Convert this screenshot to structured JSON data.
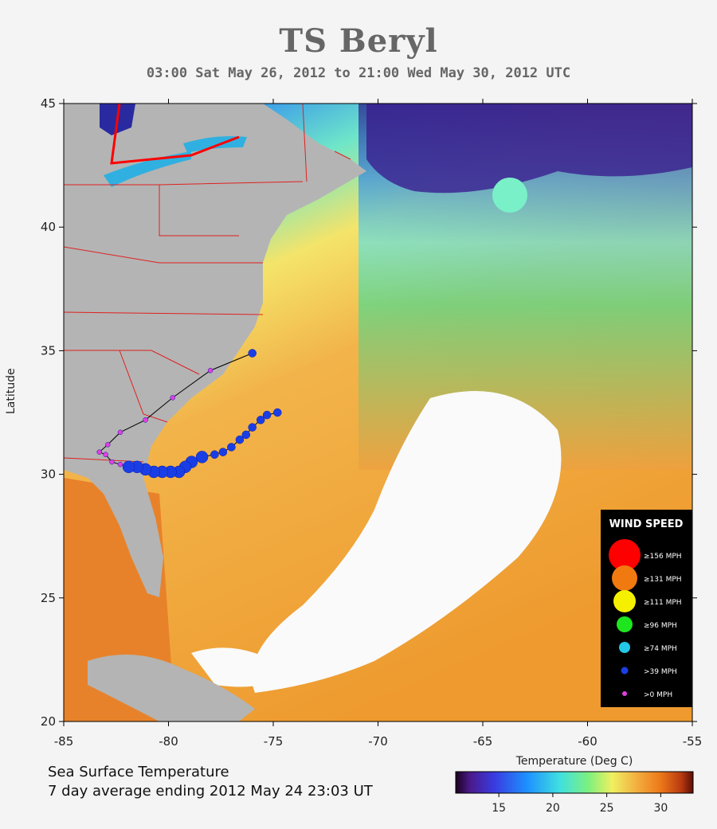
{
  "title": "TS Beryl",
  "subtitle": "03:00 Sat May 26, 2012 to 21:00 Wed May 30, 2012  UTC",
  "axes": {
    "ylabel": "Latitude",
    "lon_ticks": [
      "-85",
      "-80",
      "-75",
      "-70",
      "-65",
      "-60",
      "-55"
    ],
    "lat_ticks": [
      "45",
      "40",
      "35",
      "30",
      "25",
      "20"
    ],
    "lon_range": [
      -85,
      -55
    ],
    "lat_range": [
      20,
      45
    ]
  },
  "caption": {
    "line1": "Sea Surface Temperature",
    "line2": "7 day average ending 2012 May 24 23:03 UT"
  },
  "colorbar": {
    "title": "Temperature (Deg C)",
    "ticks": [
      "15",
      "20",
      "25",
      "30"
    ],
    "tick_values": [
      15,
      20,
      25,
      30
    ],
    "range": [
      11,
      33
    ]
  },
  "legend": {
    "title": "WIND SPEED",
    "items": [
      {
        "label": "≥156 MPH",
        "color": "#ff0000"
      },
      {
        "label": "≥131 MPH",
        "color": "#f07a10"
      },
      {
        "label": "≥111 MPH",
        "color": "#f5f000"
      },
      {
        "label": "≥96 MPH",
        "color": "#1ee61e"
      },
      {
        "label": "≥74 MPH",
        "color": "#22c8e6"
      },
      {
        "label": ">39 MPH",
        "color": "#1a3ee6"
      },
      {
        "label": ">0 MPH",
        "color": "#e040e0"
      }
    ]
  },
  "track": [
    {
      "lon": -74.8,
      "lat": 32.5,
      "cat": 5
    },
    {
      "lon": -75.3,
      "lat": 32.4,
      "cat": 5
    },
    {
      "lon": -75.6,
      "lat": 32.2,
      "cat": 5
    },
    {
      "lon": -76.0,
      "lat": 31.9,
      "cat": 5
    },
    {
      "lon": -76.3,
      "lat": 31.6,
      "cat": 5
    },
    {
      "lon": -76.6,
      "lat": 31.4,
      "cat": 5
    },
    {
      "lon": -77.0,
      "lat": 31.1,
      "cat": 5
    },
    {
      "lon": -77.4,
      "lat": 30.9,
      "cat": 5
    },
    {
      "lon": -77.8,
      "lat": 30.8,
      "cat": 5
    },
    {
      "lon": -78.4,
      "lat": 30.7,
      "cat": 5
    },
    {
      "lon": -78.9,
      "lat": 30.5,
      "cat": 5
    },
    {
      "lon": -79.2,
      "lat": 30.3,
      "cat": 5
    },
    {
      "lon": -79.5,
      "lat": 30.1,
      "cat": 5
    },
    {
      "lon": -79.9,
      "lat": 30.1,
      "cat": 5
    },
    {
      "lon": -80.3,
      "lat": 30.1,
      "cat": 5
    },
    {
      "lon": -80.7,
      "lat": 30.1,
      "cat": 5
    },
    {
      "lon": -81.1,
      "lat": 30.2,
      "cat": 5
    },
    {
      "lon": -81.5,
      "lat": 30.3,
      "cat": 5
    },
    {
      "lon": -81.9,
      "lat": 30.3,
      "cat": 5
    },
    {
      "lon": -82.3,
      "lat": 30.4,
      "cat": 6
    },
    {
      "lon": -82.7,
      "lat": 30.5,
      "cat": 6
    },
    {
      "lon": -83.0,
      "lat": 30.8,
      "cat": 6
    },
    {
      "lon": -83.3,
      "lat": 30.9,
      "cat": 6
    },
    {
      "lon": -82.9,
      "lat": 31.2,
      "cat": 6
    },
    {
      "lon": -82.3,
      "lat": 31.7,
      "cat": 6
    },
    {
      "lon": -81.1,
      "lat": 32.2,
      "cat": 6
    },
    {
      "lon": -79.8,
      "lat": 33.1,
      "cat": 6
    },
    {
      "lon": -78.0,
      "lat": 34.2,
      "cat": 6
    },
    {
      "lon": -76.0,
      "lat": 34.9,
      "cat": 5
    }
  ]
}
